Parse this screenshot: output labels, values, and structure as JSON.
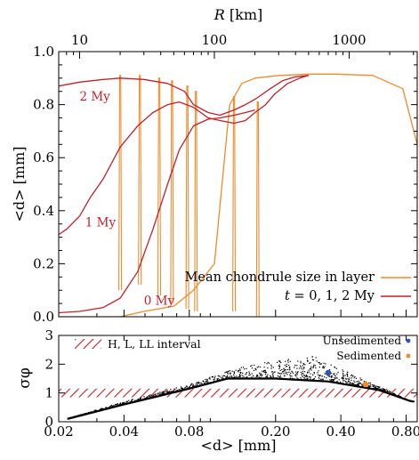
{
  "colors": {
    "orange": "#f08a2c",
    "red": "#c0222a",
    "blue": "#2f55b8",
    "black": "#000000"
  },
  "chart_data": [
    {
      "type": "line",
      "xscale": "log",
      "xlim": [
        0.02,
        0.9
      ],
      "ylim": [
        0.0,
        1.0
      ],
      "ylabel": "<d> [mm]",
      "yticks": [
        "0.0",
        "0.2",
        "0.4",
        "0.6",
        "0.8",
        "1.0"
      ],
      "top_axis": {
        "label": "R [km]",
        "scale": "log",
        "xlim": [
          7,
          3200
        ],
        "ticks": [
          "10",
          "100",
          "1000"
        ],
        "tick_values": [
          10,
          100,
          1000
        ]
      },
      "legend": {
        "placement": "lower-right",
        "entries": [
          {
            "label": "Mean chondrule size in layer",
            "color": "#f08a2c"
          },
          {
            "label": "t = 0, 1, 2 My",
            "color": "#c0222a"
          }
        ]
      },
      "series": [
        {
          "name": "Mean chondrule size in layer",
          "color": "#f08a2c",
          "x": [
            7,
            20,
            30,
            50,
            70,
            100,
            130,
            160,
            200,
            300,
            500,
            800,
            1500,
            2500,
            3200
          ],
          "y": [
            0.0,
            0.0,
            0.02,
            0.04,
            0.1,
            0.2,
            0.8,
            0.88,
            0.9,
            0.91,
            0.915,
            0.915,
            0.91,
            0.86,
            0.65
          ],
          "spikes": [
            {
              "x": 20.0,
              "base": 0.1,
              "peak": 0.91
            },
            {
              "x": 28.0,
              "base": 0.12,
              "peak": 0.91
            },
            {
              "x": 39.0,
              "base": 0.08,
              "peak": 0.9
            },
            {
              "x": 48.5,
              "base": 0.05,
              "peak": 0.89
            },
            {
              "x": 63.0,
              "base": 0.03,
              "peak": 0.87
            },
            {
              "x": 73.0,
              "base": 0.02,
              "peak": 0.85
            },
            {
              "x": 140.0,
              "base": 0.02,
              "peak": 0.83
            },
            {
              "x": 210.0,
              "base": 0.0,
              "peak": 0.81
            }
          ]
        },
        {
          "name": "t = 2 My",
          "label": "2 My",
          "color": "#c0222a",
          "x": [
            7,
            10,
            15,
            20,
            30,
            45,
            60,
            70,
            90,
            110,
            140,
            170,
            200,
            260,
            320,
            400,
            500
          ],
          "y": [
            0.87,
            0.885,
            0.895,
            0.9,
            0.895,
            0.88,
            0.85,
            0.8,
            0.77,
            0.76,
            0.78,
            0.8,
            0.82,
            0.86,
            0.89,
            0.905,
            0.91
          ]
        },
        {
          "name": "t = 1 My",
          "label": "1 My",
          "color": "#c0222a",
          "x": [
            7,
            8,
            10,
            12,
            15,
            20,
            27,
            35,
            45,
            55,
            70,
            90,
            110,
            140,
            170,
            200,
            240,
            280,
            350,
            430,
            500
          ],
          "y": [
            0.31,
            0.33,
            0.38,
            0.45,
            0.52,
            0.64,
            0.72,
            0.77,
            0.8,
            0.81,
            0.79,
            0.75,
            0.74,
            0.73,
            0.74,
            0.77,
            0.8,
            0.84,
            0.88,
            0.9,
            0.91
          ]
        },
        {
          "name": "t = 0 My",
          "label": "0 My",
          "color": "#c0222a",
          "x": [
            7,
            10,
            15,
            20,
            27,
            35,
            45,
            55,
            70,
            90,
            110,
            140,
            170,
            200
          ],
          "y": [
            0.015,
            0.02,
            0.035,
            0.07,
            0.17,
            0.33,
            0.5,
            0.63,
            0.72,
            0.745,
            0.75,
            0.76,
            0.77,
            0.78
          ]
        }
      ]
    },
    {
      "type": "scatter",
      "xscale": "log",
      "xlim": [
        0.02,
        0.9
      ],
      "ylim": [
        0,
        3
      ],
      "xlabel": "<d> [mm]",
      "ylabel": "σφ",
      "xticks": [
        "0.02",
        "0.04",
        "0.08",
        "0.20",
        "0.40",
        "0.80"
      ],
      "xtick_values": [
        0.02,
        0.04,
        0.08,
        0.2,
        0.4,
        0.8
      ],
      "yticks": [
        "0",
        "1",
        "2",
        "3"
      ],
      "band": {
        "label": "H, L, LL interval",
        "y": [
          0.85,
          1.15
        ],
        "color": "#c0222a"
      },
      "legend": {
        "placement": "top-right",
        "entries": [
          {
            "label": "Unsedimented",
            "color": "#2f55b8"
          },
          {
            "label": "Sedimented",
            "color": "#f08a2c"
          }
        ]
      },
      "markers": [
        {
          "name": "Unsedimented",
          "x": 0.35,
          "y": 1.7,
          "color": "#2f55b8"
        },
        {
          "name": "Sedimented",
          "x": 0.52,
          "y": 1.3,
          "color": "#f08a2c"
        }
      ],
      "cloud": {
        "color": "#000000",
        "ridge": [
          [
            0.022,
            0.12
          ],
          [
            0.04,
            0.7
          ],
          [
            0.08,
            1.3
          ],
          [
            0.15,
            2.0
          ],
          [
            0.3,
            2.3
          ],
          [
            0.5,
            1.5
          ],
          [
            0.85,
            0.7
          ]
        ],
        "lower_edge": [
          [
            0.022,
            0.1
          ],
          [
            0.04,
            0.6
          ],
          [
            0.08,
            1.15
          ],
          [
            0.12,
            1.5
          ],
          [
            0.2,
            1.5
          ],
          [
            0.35,
            1.4
          ],
          [
            0.6,
            1.1
          ],
          [
            0.85,
            0.7
          ]
        ]
      }
    }
  ]
}
